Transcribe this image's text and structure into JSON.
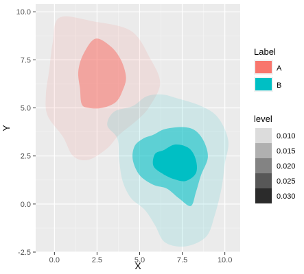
{
  "chart_data": {
    "type": "density-contour",
    "xlabel": "X",
    "ylabel": "Y",
    "xlim": [
      -1.1,
      10.9
    ],
    "ylim": [
      -2.5,
      10.4
    ],
    "x_ticks": [
      0.0,
      2.5,
      5.0,
      7.5,
      10.0
    ],
    "x_tick_labels": [
      "0.0",
      "2.5",
      "5.0",
      "7.5",
      "10.0"
    ],
    "y_ticks": [
      -2.5,
      0.0,
      2.5,
      5.0,
      7.5,
      10.0
    ],
    "y_tick_labels": [
      "-2.5",
      "0.0",
      "2.5",
      "5.0",
      "7.5",
      "10.0"
    ],
    "grid": true,
    "series": [
      {
        "name": "A",
        "color": "#F8766D",
        "levels": [
          {
            "level": 0.01,
            "alpha": 0.12,
            "points": [
              [
                0.3,
                9.7
              ],
              [
                2.3,
                9.5
              ],
              [
                4.5,
                9.0
              ],
              [
                5.6,
                7.6
              ],
              [
                6.2,
                6.3
              ],
              [
                5.6,
                5.1
              ],
              [
                4.9,
                4.4
              ],
              [
                3.8,
                3.6
              ],
              [
                3.1,
                2.9
              ],
              [
                2.0,
                2.3
              ],
              [
                1.1,
                2.5
              ],
              [
                0.5,
                3.5
              ],
              [
                -0.4,
                4.6
              ],
              [
                -0.5,
                5.7
              ],
              [
                -0.3,
                7.0
              ],
              [
                -0.1,
                8.4
              ]
            ]
          },
          {
            "level": 0.02,
            "alpha": 0.55,
            "points": [
              [
                2.4,
                8.6
              ],
              [
                3.3,
                8.2
              ],
              [
                3.9,
                7.5
              ],
              [
                4.2,
                6.6
              ],
              [
                4.0,
                5.9
              ],
              [
                3.6,
                5.3
              ],
              [
                2.8,
                5.0
              ],
              [
                2.0,
                5.0
              ],
              [
                1.6,
                5.2
              ],
              [
                1.5,
                6.0
              ],
              [
                1.4,
                6.9
              ],
              [
                1.7,
                7.8
              ]
            ]
          }
        ]
      },
      {
        "name": "B",
        "color": "#00BFC4",
        "levels": [
          {
            "level": 0.01,
            "alpha": 0.12,
            "points": [
              [
                6.3,
                5.7
              ],
              [
                7.2,
                5.5
              ],
              [
                8.6,
                5.1
              ],
              [
                9.6,
                4.5
              ],
              [
                10.2,
                3.3
              ],
              [
                10.0,
                2.1
              ],
              [
                9.8,
                0.8
              ],
              [
                9.4,
                -0.6
              ],
              [
                8.9,
                -1.7
              ],
              [
                7.7,
                -2.2
              ],
              [
                6.5,
                -2.0
              ],
              [
                5.9,
                -1.1
              ],
              [
                5.3,
                -0.3
              ],
              [
                4.5,
                0.3
              ],
              [
                4.0,
                1.2
              ],
              [
                3.8,
                2.3
              ],
              [
                3.7,
                3.4
              ],
              [
                3.1,
                4.1
              ],
              [
                3.5,
                4.8
              ],
              [
                4.6,
                5.1
              ],
              [
                5.4,
                5.6
              ]
            ]
          },
          {
            "level": 0.02,
            "alpha": 0.55,
            "points": [
              [
                5.8,
                3.6
              ],
              [
                6.5,
                3.9
              ],
              [
                7.6,
                4.0
              ],
              [
                8.3,
                3.8
              ],
              [
                8.8,
                3.2
              ],
              [
                9.0,
                2.4
              ],
              [
                8.6,
                1.5
              ],
              [
                8.3,
                0.6
              ],
              [
                8.0,
                -0.1
              ],
              [
                7.3,
                0.3
              ],
              [
                6.6,
                0.8
              ],
              [
                5.8,
                1.0
              ],
              [
                5.0,
                1.5
              ],
              [
                4.6,
                2.3
              ],
              [
                4.7,
                3.0
              ],
              [
                5.2,
                3.4
              ]
            ]
          },
          {
            "level": 0.03,
            "alpha": 1.0,
            "points": [
              [
                6.4,
                2.8
              ],
              [
                7.1,
                3.1
              ],
              [
                7.9,
                2.9
              ],
              [
                8.3,
                2.3
              ],
              [
                8.3,
                1.6
              ],
              [
                7.7,
                1.2
              ],
              [
                7.0,
                1.3
              ],
              [
                6.3,
                1.6
              ],
              [
                5.8,
                2.0
              ],
              [
                5.9,
                2.6
              ]
            ]
          }
        ]
      }
    ],
    "legend_label": {
      "title": "Label",
      "entries": [
        {
          "name": "A",
          "color": "#F8766D"
        },
        {
          "name": "B",
          "color": "#00BFC4"
        }
      ]
    },
    "legend_level": {
      "title": "level",
      "entries": [
        {
          "label": "0.010",
          "color": "#dcdcdc"
        },
        {
          "label": "0.015",
          "color": "#b0b0b0"
        },
        {
          "label": "0.020",
          "color": "#838383"
        },
        {
          "label": "0.025",
          "color": "#575757"
        },
        {
          "label": "0.030",
          "color": "#2b2b2b"
        }
      ]
    },
    "legend_placement": "right"
  }
}
